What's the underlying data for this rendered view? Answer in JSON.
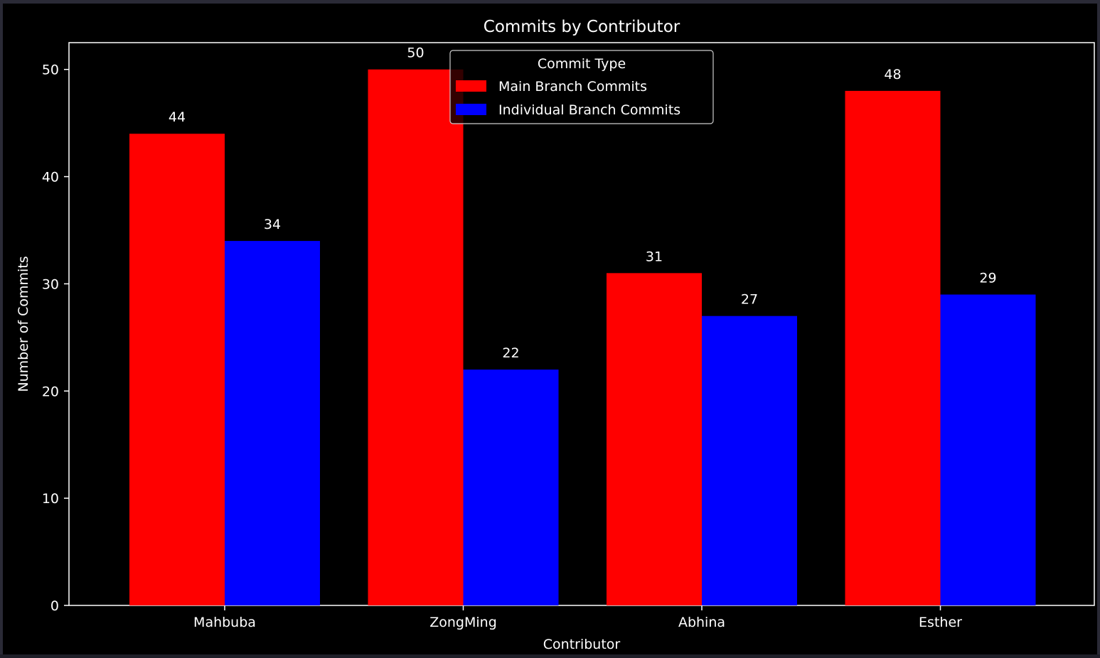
{
  "chart_data": {
    "type": "bar",
    "title": "Commits by Contributor",
    "xlabel": "Contributor",
    "ylabel": "Number of Commits",
    "categories": [
      "Mahbuba",
      "ZongMing",
      "Abhina",
      "Esther"
    ],
    "series": [
      {
        "name": "Main Branch Commits",
        "values": [
          44,
          50,
          31,
          48
        ],
        "color": "#ff0000"
      },
      {
        "name": "Individual Branch Commits",
        "values": [
          34,
          22,
          27,
          29
        ],
        "color": "#0000ff"
      }
    ],
    "ylim": [
      0,
      52.5
    ],
    "yticks": [
      0,
      10,
      20,
      30,
      40,
      50
    ],
    "grid": false,
    "legend": {
      "title": "Commit Type",
      "placement": "upper-center"
    },
    "background": "#000000",
    "foreground": "#ffffff"
  }
}
